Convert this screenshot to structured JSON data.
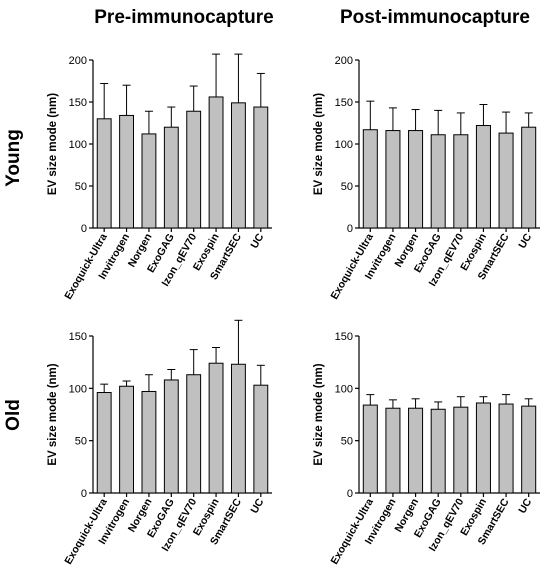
{
  "col_titles": [
    "Pre-immunocapture",
    "Post-immunocapture"
  ],
  "row_labels": [
    "Young",
    "Old"
  ],
  "chart_data": [
    {
      "type": "bar",
      "panel": "young-pre",
      "ylabel": "EV size mode (nm)",
      "ylim": [
        0,
        200
      ],
      "yticks": [
        0,
        50,
        100,
        150,
        200
      ],
      "categories": [
        "Exoquick-Ultra",
        "Invitrogen",
        "Norgen",
        "ExoGAG",
        "Izon_qEV70",
        "Exospin",
        "SmartSEC",
        "UC"
      ],
      "values": [
        130,
        134,
        112,
        120,
        139,
        156,
        149,
        144
      ],
      "error_upper": [
        172,
        170,
        139,
        144,
        169,
        207,
        207,
        184
      ],
      "bar_color": "#c0c0c0"
    },
    {
      "type": "bar",
      "panel": "young-post",
      "ylabel": "EV size mode (nm)",
      "ylim": [
        0,
        200
      ],
      "yticks": [
        0,
        50,
        100,
        150,
        200
      ],
      "categories": [
        "Exoquick-Ultra",
        "Invitrogen",
        "Norgen",
        "ExoGAG",
        "Izon_qEV70",
        "Exospin",
        "SmartSEC",
        "UC"
      ],
      "values": [
        117,
        116,
        116,
        111,
        111,
        122,
        113,
        120
      ],
      "error_upper": [
        151,
        143,
        141,
        140,
        137,
        147,
        138,
        137
      ],
      "bar_color": "#c0c0c0"
    },
    {
      "type": "bar",
      "panel": "old-pre",
      "ylabel": "EV size mode (nm)",
      "ylim": [
        0,
        150
      ],
      "yticks": [
        0,
        50,
        100,
        150
      ],
      "categories": [
        "Exoquick-Ultra",
        "Invitrogen",
        "Norgen",
        "ExoGAG",
        "Izon_qEV70",
        "Exospin",
        "SmartSEC",
        "UC"
      ],
      "values": [
        96,
        102,
        97,
        108,
        113,
        124,
        123,
        103
      ],
      "error_upper": [
        104,
        107,
        113,
        118,
        137,
        139,
        165,
        122
      ],
      "bar_color": "#c0c0c0"
    },
    {
      "type": "bar",
      "panel": "old-post",
      "ylabel": "EV size mode (nm)",
      "ylim": [
        0,
        150
      ],
      "yticks": [
        0,
        50,
        100,
        150
      ],
      "categories": [
        "Exoquick-Ultra",
        "Invitrogen",
        "Norgen",
        "ExoGAG",
        "Izon_qEV70",
        "Exospin",
        "SmartSEC",
        "UC"
      ],
      "values": [
        84,
        81,
        81,
        80,
        82,
        86,
        85,
        83
      ],
      "error_upper": [
        94,
        89,
        90,
        87,
        92,
        92,
        94,
        90
      ],
      "bar_color": "#c0c0c0"
    }
  ]
}
